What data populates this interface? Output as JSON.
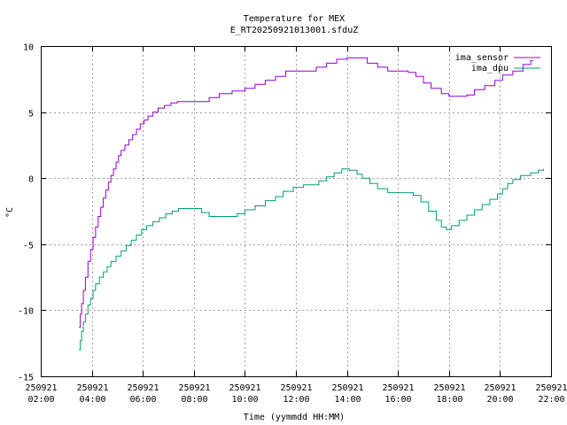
{
  "chart_data": {
    "type": "line",
    "title": "Temperature for MEX",
    "subtitle": "E_RT20250921013001.sfduZ",
    "xlabel": "Time (yymmdd HH:MM)",
    "ylabel": "°C",
    "xlim": [
      2.0,
      22.0
    ],
    "ylim": [
      -15,
      10
    ],
    "grid": true,
    "legend_position": "top-right",
    "x_ticks": [
      {
        "value": 2,
        "date": "250921",
        "time": "02:00"
      },
      {
        "value": 4,
        "date": "250921",
        "time": "04:00"
      },
      {
        "value": 6,
        "date": "250921",
        "time": "06:00"
      },
      {
        "value": 8,
        "date": "250921",
        "time": "08:00"
      },
      {
        "value": 10,
        "date": "250921",
        "time": "10:00"
      },
      {
        "value": 12,
        "date": "250921",
        "time": "12:00"
      },
      {
        "value": 14,
        "date": "250921",
        "time": "14:00"
      },
      {
        "value": 16,
        "date": "250921",
        "time": "16:00"
      },
      {
        "value": 18,
        "date": "250921",
        "time": "18:00"
      },
      {
        "value": 20,
        "date": "250921",
        "time": "20:00"
      },
      {
        "value": 22,
        "date": "250921",
        "time": "22:00"
      }
    ],
    "y_ticks": [
      10,
      5,
      0,
      -5,
      -10,
      -15
    ],
    "series": [
      {
        "name": "ima_sensor",
        "color": "#9400d3",
        "points": [
          [
            3.5,
            -11.3
          ],
          [
            3.55,
            -10.3
          ],
          [
            3.6,
            -9.5
          ],
          [
            3.67,
            -8.5
          ],
          [
            3.75,
            -7.5
          ],
          [
            3.85,
            -6.3
          ],
          [
            3.95,
            -5.4
          ],
          [
            4.05,
            -4.5
          ],
          [
            4.15,
            -3.7
          ],
          [
            4.25,
            -2.9
          ],
          [
            4.35,
            -2.2
          ],
          [
            4.45,
            -1.5
          ],
          [
            4.55,
            -0.9
          ],
          [
            4.65,
            -0.3
          ],
          [
            4.75,
            0.2
          ],
          [
            4.85,
            0.7
          ],
          [
            4.95,
            1.2
          ],
          [
            5.05,
            1.7
          ],
          [
            5.15,
            2.1
          ],
          [
            5.3,
            2.5
          ],
          [
            5.45,
            2.9
          ],
          [
            5.6,
            3.3
          ],
          [
            5.75,
            3.7
          ],
          [
            5.9,
            4.1
          ],
          [
            6.05,
            4.4
          ],
          [
            6.2,
            4.7
          ],
          [
            6.4,
            5.0
          ],
          [
            6.6,
            5.3
          ],
          [
            6.85,
            5.5
          ],
          [
            7.1,
            5.7
          ],
          [
            7.35,
            5.8
          ],
          [
            7.6,
            5.8
          ],
          [
            8.0,
            5.8
          ],
          [
            8.4,
            5.8
          ],
          [
            8.6,
            6.1
          ],
          [
            9.0,
            6.4
          ],
          [
            9.5,
            6.6
          ],
          [
            10.0,
            6.8
          ],
          [
            10.4,
            7.1
          ],
          [
            10.8,
            7.4
          ],
          [
            11.2,
            7.7
          ],
          [
            11.6,
            8.1
          ],
          [
            12.0,
            8.1
          ],
          [
            12.4,
            8.1
          ],
          [
            12.8,
            8.4
          ],
          [
            13.2,
            8.7
          ],
          [
            13.6,
            9.0
          ],
          [
            14.0,
            9.1
          ],
          [
            14.4,
            9.1
          ],
          [
            14.8,
            8.7
          ],
          [
            15.2,
            8.4
          ],
          [
            15.6,
            8.1
          ],
          [
            16.0,
            8.1
          ],
          [
            16.4,
            8.0
          ],
          [
            16.7,
            7.7
          ],
          [
            17.0,
            7.2
          ],
          [
            17.3,
            6.8
          ],
          [
            17.7,
            6.4
          ],
          [
            18.0,
            6.2
          ],
          [
            18.4,
            6.2
          ],
          [
            18.7,
            6.3
          ],
          [
            19.0,
            6.7
          ],
          [
            19.4,
            7.0
          ],
          [
            19.8,
            7.4
          ],
          [
            20.1,
            7.8
          ],
          [
            20.5,
            8.1
          ],
          [
            20.9,
            8.6
          ],
          [
            21.2,
            8.9
          ],
          [
            21.3,
            8.9
          ]
        ]
      },
      {
        "name": "ima_dpu",
        "color": "#009e73",
        "points": [
          [
            3.5,
            -13.0
          ],
          [
            3.55,
            -12.3
          ],
          [
            3.6,
            -11.6
          ],
          [
            3.67,
            -10.9
          ],
          [
            3.75,
            -10.3
          ],
          [
            3.85,
            -9.6
          ],
          [
            3.95,
            -9.1
          ],
          [
            4.05,
            -8.5
          ],
          [
            4.15,
            -8.0
          ],
          [
            4.3,
            -7.5
          ],
          [
            4.45,
            -7.1
          ],
          [
            4.6,
            -6.7
          ],
          [
            4.75,
            -6.3
          ],
          [
            4.95,
            -5.9
          ],
          [
            5.15,
            -5.5
          ],
          [
            5.35,
            -5.1
          ],
          [
            5.55,
            -4.7
          ],
          [
            5.75,
            -4.3
          ],
          [
            5.95,
            -3.9
          ],
          [
            6.15,
            -3.6
          ],
          [
            6.4,
            -3.3
          ],
          [
            6.65,
            -3.0
          ],
          [
            6.9,
            -2.7
          ],
          [
            7.15,
            -2.5
          ],
          [
            7.4,
            -2.3
          ],
          [
            7.7,
            -2.3
          ],
          [
            8.0,
            -2.3
          ],
          [
            8.3,
            -2.6
          ],
          [
            8.6,
            -2.9
          ],
          [
            9.0,
            -2.9
          ],
          [
            9.4,
            -2.9
          ],
          [
            9.7,
            -2.7
          ],
          [
            10.0,
            -2.4
          ],
          [
            10.4,
            -2.1
          ],
          [
            10.8,
            -1.7
          ],
          [
            11.2,
            -1.4
          ],
          [
            11.5,
            -1.0
          ],
          [
            11.9,
            -0.7
          ],
          [
            12.3,
            -0.5
          ],
          [
            12.6,
            -0.5
          ],
          [
            12.9,
            -0.2
          ],
          [
            13.2,
            0.1
          ],
          [
            13.5,
            0.4
          ],
          [
            13.8,
            0.7
          ],
          [
            14.1,
            0.6
          ],
          [
            14.4,
            0.3
          ],
          [
            14.6,
            0.0
          ],
          [
            14.9,
            -0.4
          ],
          [
            15.2,
            -0.8
          ],
          [
            15.6,
            -1.1
          ],
          [
            16.0,
            -1.1
          ],
          [
            16.3,
            -1.1
          ],
          [
            16.6,
            -1.3
          ],
          [
            16.9,
            -1.8
          ],
          [
            17.2,
            -2.5
          ],
          [
            17.5,
            -3.2
          ],
          [
            17.7,
            -3.7
          ],
          [
            17.9,
            -3.9
          ],
          [
            18.1,
            -3.6
          ],
          [
            18.4,
            -3.2
          ],
          [
            18.7,
            -2.8
          ],
          [
            19.0,
            -2.4
          ],
          [
            19.3,
            -2.0
          ],
          [
            19.6,
            -1.6
          ],
          [
            19.9,
            -1.2
          ],
          [
            20.1,
            -0.8
          ],
          [
            20.3,
            -0.4
          ],
          [
            20.5,
            -0.1
          ],
          [
            20.8,
            0.2
          ],
          [
            21.2,
            0.4
          ],
          [
            21.5,
            0.6
          ],
          [
            21.7,
            0.7
          ]
        ]
      }
    ]
  }
}
